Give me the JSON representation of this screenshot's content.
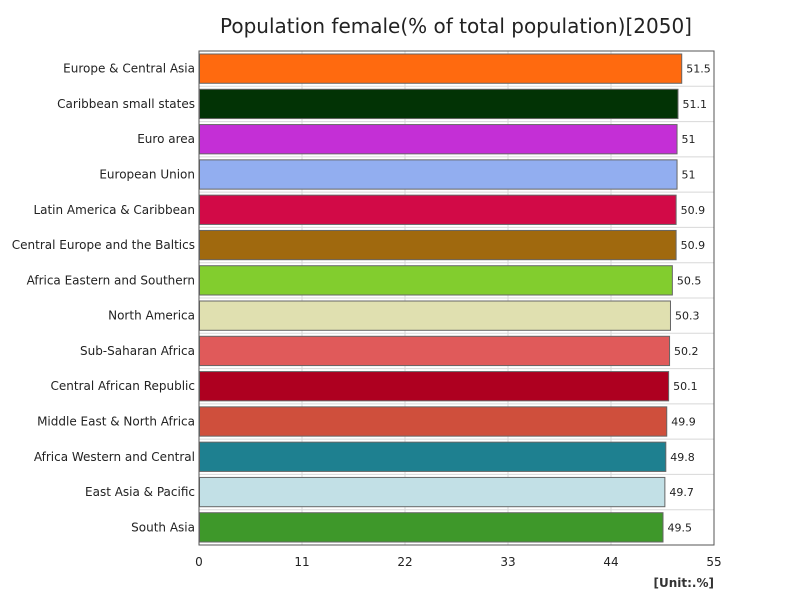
{
  "chart_data": {
    "type": "bar",
    "orientation": "horizontal",
    "title": "Population female(% of total population)[2050]",
    "unit_label": "[Unit:.%]",
    "xlim": [
      0,
      55
    ],
    "x_ticks": [
      0,
      11,
      22,
      33,
      44,
      55
    ],
    "grid": true,
    "categories": [
      "Europe & Central Asia",
      "Caribbean small states",
      "Euro area",
      "European Union",
      "Latin America & Caribbean",
      "Central Europe and the Baltics",
      "Africa Eastern and Southern",
      "North America",
      "Sub-Saharan Africa",
      "Central African Republic",
      "Middle East & North Africa",
      "Africa Western and Central",
      "East Asia & Pacific",
      "South Asia"
    ],
    "values": [
      51.5,
      51.1,
      51,
      51,
      50.9,
      50.9,
      50.5,
      50.3,
      50.2,
      50.1,
      49.9,
      49.8,
      49.7,
      49.5
    ],
    "value_labels": [
      "51.5",
      "51.1",
      "51",
      "51",
      "50.9",
      "50.9",
      "50.5",
      "50.3",
      "50.2",
      "50.1",
      "49.9",
      "49.8",
      "49.7",
      "49.5"
    ],
    "colors": [
      "#ff6a0f",
      "#023305",
      "#c42fd6",
      "#92aef0",
      "#d20a47",
      "#a0690e",
      "#82cd2e",
      "#e0e0b0",
      "#e05a5a",
      "#ae0020",
      "#cf4f3c",
      "#1e8090",
      "#c2e0e6",
      "#3e982a"
    ]
  }
}
